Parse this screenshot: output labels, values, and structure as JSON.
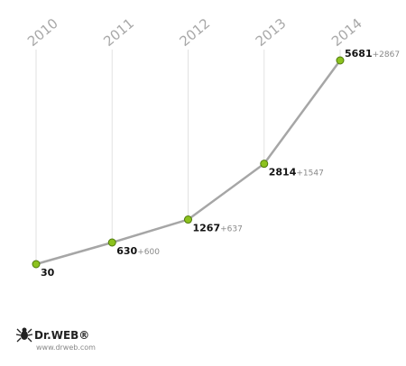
{
  "chart_data": {
    "type": "line",
    "categories": [
      "2010",
      "2011",
      "2012",
      "2013",
      "2014"
    ],
    "values": [
      30,
      630,
      1267,
      2814,
      5681
    ],
    "increments": [
      null,
      "+600",
      "+637",
      "+1547",
      "+2867"
    ],
    "color": "#a6a6a6",
    "marker_color": "#8cc21e"
  },
  "logo": {
    "name": "Dr.WEB®",
    "url": "www.drweb.com"
  }
}
